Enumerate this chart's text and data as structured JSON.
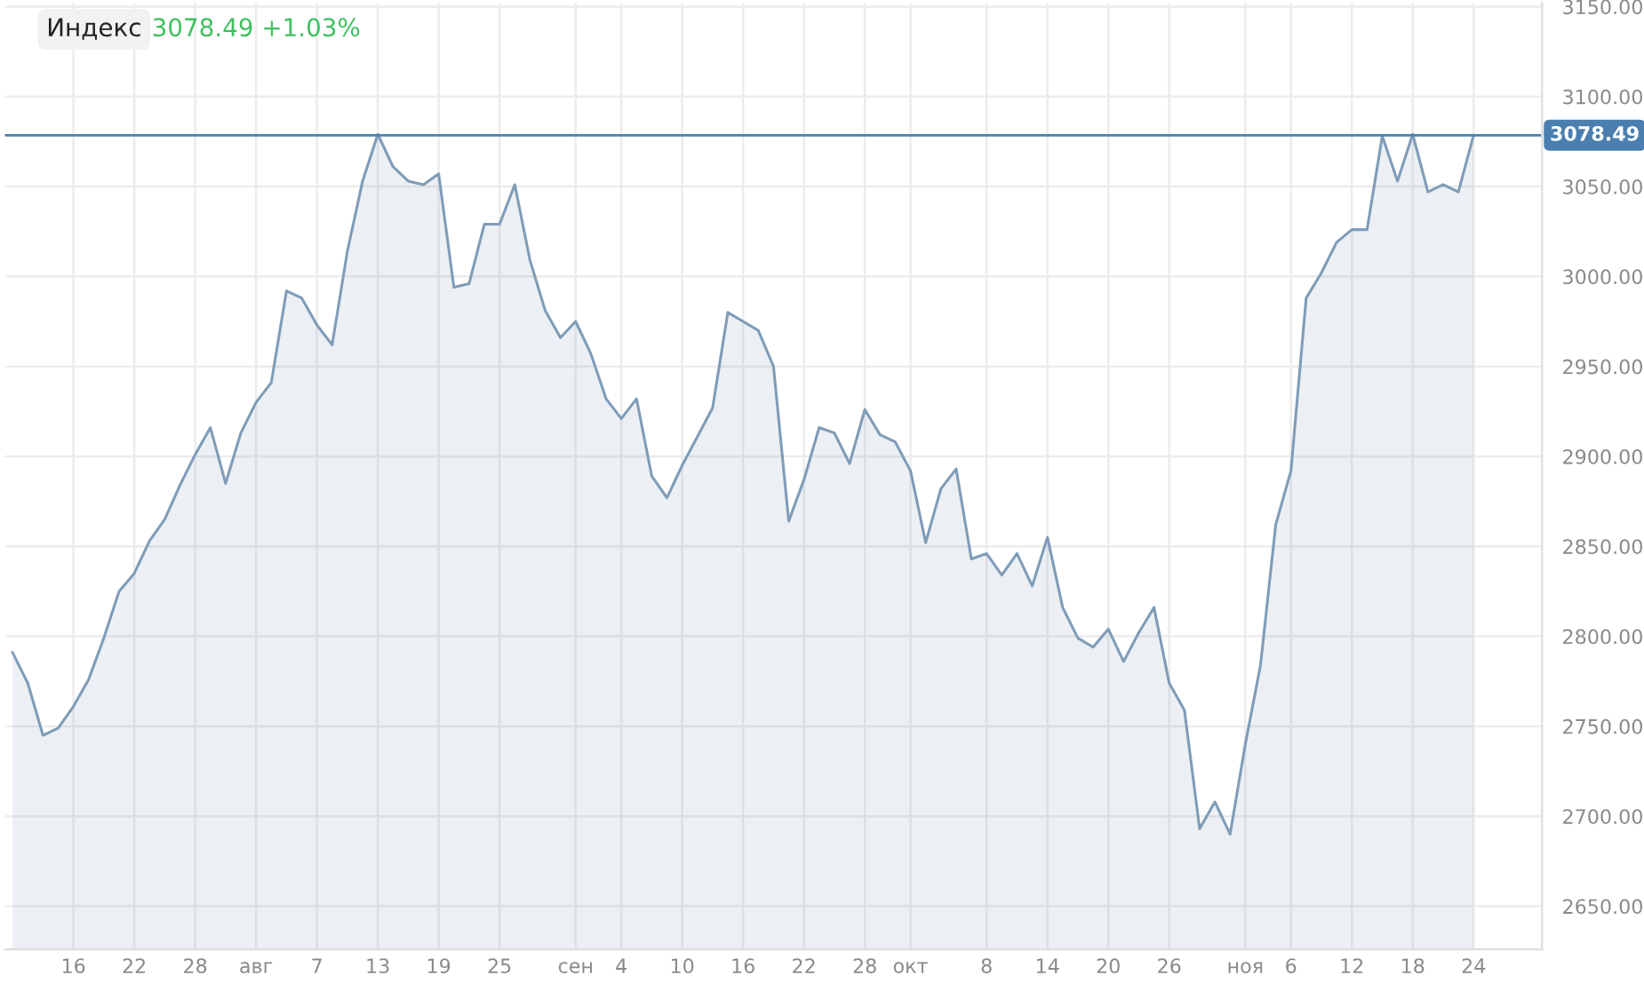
{
  "chart_data": {
    "type": "area",
    "title": "Индекс",
    "subtitle": "3078.49 +1.03%",
    "categories": [
      null,
      null,
      null,
      null,
      "16",
      null,
      null,
      null,
      "22",
      null,
      null,
      null,
      "28",
      null,
      null,
      null,
      "авг",
      null,
      null,
      null,
      "7",
      null,
      null,
      null,
      "13",
      null,
      null,
      null,
      "19",
      null,
      null,
      null,
      "25",
      null,
      null,
      null,
      null,
      "сен",
      null,
      null,
      "4",
      null,
      null,
      null,
      "10",
      null,
      null,
      null,
      "16",
      null,
      null,
      null,
      "22",
      null,
      null,
      null,
      "28",
      null,
      null,
      "окт",
      null,
      null,
      null,
      null,
      "8",
      null,
      null,
      null,
      "14",
      null,
      null,
      null,
      "20",
      null,
      null,
      null,
      "26",
      null,
      null,
      null,
      null,
      "ноя",
      null,
      null,
      "6",
      null,
      null,
      null,
      "12",
      null,
      null,
      null,
      "18",
      null,
      null,
      null,
      "24"
    ],
    "series": [
      {
        "color": "#7f9cb8",
        "values": [
          2791,
          2774,
          2745,
          2749,
          2761,
          2776,
          2799,
          2825,
          2835,
          2853,
          2865,
          2884,
          2901,
          2916,
          2885,
          2913,
          2930,
          2941,
          2992,
          2988,
          2973,
          2962,
          3014,
          3053,
          3079,
          3061,
          3053,
          3051,
          3057,
          2994,
          2996,
          3029,
          3029,
          3051,
          3009,
          2981,
          2966,
          2975,
          2957,
          2932,
          2921,
          2932,
          2889,
          2877,
          2895,
          2911,
          2927,
          2980,
          2975,
          2970,
          2950,
          2864,
          2887,
          2916,
          2913,
          2896,
          2926,
          2912,
          2908,
          2892,
          2852,
          2882,
          2893,
          2843,
          2846,
          2834,
          2846,
          2828,
          2855,
          2816,
          2799,
          2794,
          2804,
          2786,
          2802,
          2816,
          2774,
          2759,
          2693,
          2708,
          2690,
          2740,
          2784,
          2862,
          2892,
          2988,
          3002,
          3019,
          3026,
          3026,
          3078,
          3053,
          3079,
          3047,
          3051,
          3047,
          3078.49
        ]
      }
    ],
    "ylim": [
      2626,
      3152
    ],
    "yticks": [
      {
        "value": 2650,
        "label": "2650.00"
      },
      {
        "value": 2700,
        "label": "2700.00"
      },
      {
        "value": 2750,
        "label": "2750.00"
      },
      {
        "value": 2800,
        "label": "2800.00"
      },
      {
        "value": 2850,
        "label": "2850.00"
      },
      {
        "value": 2900,
        "label": "2900.00"
      },
      {
        "value": 2950,
        "label": "2950.00"
      },
      {
        "value": 3000,
        "label": "3000.00"
      },
      {
        "value": 3050,
        "label": "3050.00"
      },
      {
        "value": 3100,
        "label": "3100.00"
      },
      {
        "value": 3150,
        "label": "3150.00"
      }
    ],
    "ref_lines": [
      {
        "axis": "y",
        "value": 3078.49,
        "label": "3078.49",
        "color": "#4a7fb0"
      }
    ],
    "grid": true,
    "legend": false
  }
}
